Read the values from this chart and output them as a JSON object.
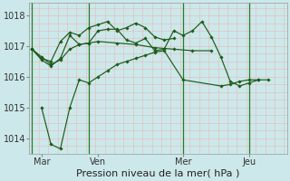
{
  "title": "Pression niveau de la mer( hPa )",
  "bg_color": "#cce8ea",
  "grid_major_color": "#e8b8b8",
  "grid_minor_color": "#ddd0d0",
  "line_color": "#1a5c1a",
  "vline_color": "#2a7a2a",
  "ylim": [
    1013.5,
    1018.4
  ],
  "xlim": [
    -0.15,
    13.5
  ],
  "yticks": [
    1014,
    1015,
    1016,
    1017,
    1018
  ],
  "xtick_labels": [
    "Mar",
    "Ven",
    "Mer",
    "Jeu"
  ],
  "xtick_positions": [
    0.5,
    3.5,
    8.0,
    11.5
  ],
  "vline_positions": [
    0.0,
    3.0,
    8.0,
    11.5
  ],
  "series": [
    [
      1016.9,
      1016.65,
      1016.4,
      1016.55,
      1016.9,
      1017.05,
      1017.1,
      1017.15,
      1017.1,
      1017.05,
      1016.95,
      1016.9,
      1016.85,
      1016.85
    ],
    [
      1016.9,
      1016.55,
      1016.35,
      1016.6,
      1017.35,
      1017.05,
      1017.1,
      1017.5,
      1017.55,
      1017.55,
      1017.2,
      1017.1,
      1017.25,
      1016.85,
      1016.9,
      1017.5,
      1017.35,
      1017.5,
      1017.8,
      1017.3,
      1016.65,
      1015.85,
      1015.7,
      1015.8,
      1015.9,
      1015.9
    ],
    [
      1016.9,
      1016.6,
      1016.5,
      1017.15,
      1017.45,
      1017.35,
      1017.6,
      1017.7,
      1017.8,
      1017.5,
      1017.6,
      1017.75,
      1017.6,
      1017.3,
      1017.2,
      1017.25
    ],
    [
      1015.0,
      1013.8,
      1013.65,
      1015.0,
      1015.9,
      1015.8,
      1016.0,
      1016.2,
      1016.4,
      1016.5,
      1016.6,
      1016.7,
      1016.8,
      1016.85,
      1015.9,
      1015.7,
      1015.75,
      1015.85,
      1015.9,
      1015.9
    ]
  ],
  "series_x": [
    [
      0.0,
      0.5,
      1.0,
      1.5,
      2.0,
      2.5,
      3.0,
      3.5,
      4.5,
      5.5,
      6.5,
      7.5,
      8.5,
      9.5
    ],
    [
      0.0,
      0.5,
      1.0,
      1.5,
      2.0,
      2.5,
      3.0,
      3.5,
      4.0,
      4.5,
      5.0,
      5.5,
      6.0,
      6.5,
      7.0,
      7.5,
      8.0,
      8.5,
      9.0,
      9.5,
      10.0,
      10.5,
      11.0,
      11.5,
      12.0,
      12.5
    ],
    [
      0.0,
      0.5,
      1.0,
      1.5,
      2.0,
      2.5,
      3.0,
      3.5,
      4.0,
      4.5,
      5.0,
      5.5,
      6.0,
      6.5,
      7.0,
      7.5
    ],
    [
      0.5,
      1.0,
      1.5,
      2.0,
      2.5,
      3.0,
      3.5,
      4.0,
      4.5,
      5.0,
      5.5,
      6.0,
      6.5,
      7.0,
      8.0,
      10.0,
      10.5,
      11.0,
      11.5,
      12.0
    ]
  ],
  "title_fontsize": 8,
  "tick_fontsize": 7
}
